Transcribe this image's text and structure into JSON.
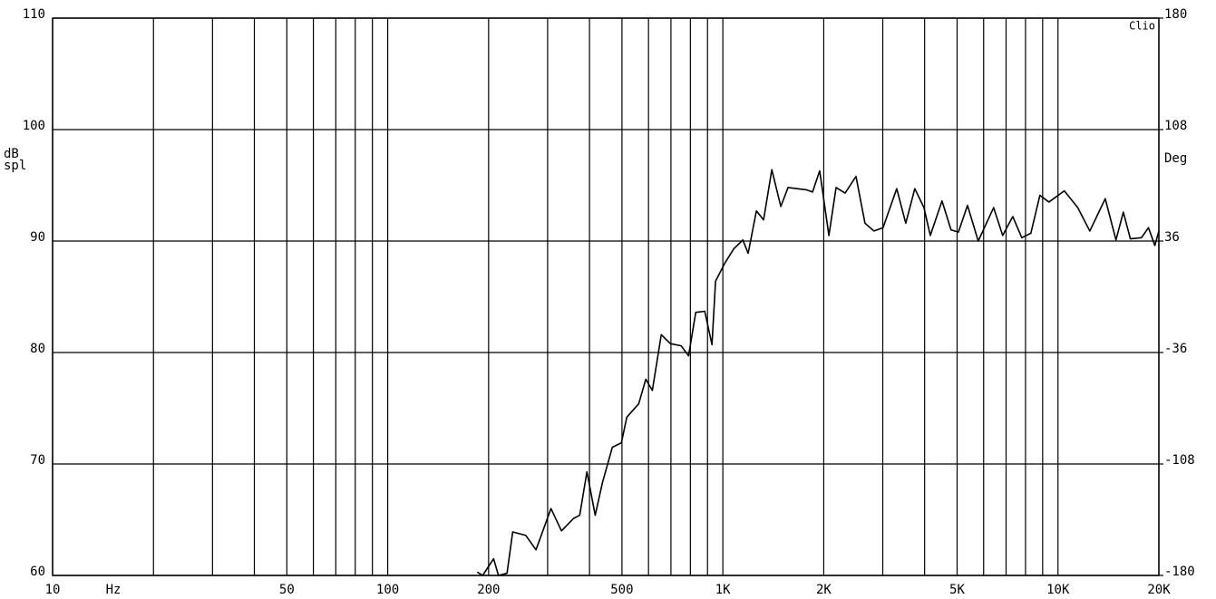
{
  "chart_data": {
    "type": "line",
    "xscale": "log",
    "xlabel": "Hz",
    "ylabel": [
      "dB",
      "spl"
    ],
    "y2label": "Deg",
    "annotation": "Clio",
    "color": "#000000",
    "xlim": [
      10,
      20000
    ],
    "ylim": [
      60,
      110
    ],
    "y2lim": [
      -180,
      180
    ],
    "xticks": [
      10,
      50,
      100,
      200,
      500,
      {
        "value": 1000,
        "label": "1K"
      },
      {
        "value": 2000,
        "label": "2K"
      },
      {
        "value": 5000,
        "label": "5K"
      },
      {
        "value": 10000,
        "label": "10K"
      },
      {
        "value": 20000,
        "label": "20K"
      }
    ],
    "x_minor_ticks": [
      20,
      30,
      40,
      60,
      70,
      80,
      90,
      300,
      400,
      600,
      700,
      800,
      900,
      3000,
      4000,
      6000,
      7000,
      8000,
      9000
    ],
    "yticks": [
      60,
      70,
      80,
      90,
      100,
      110
    ],
    "y2ticks": [
      -180,
      -108,
      -36,
      36,
      108,
      180
    ],
    "grid": true,
    "x": [
      185,
      192,
      207,
      214,
      227,
      236,
      258,
      277,
      307,
      330,
      358,
      374,
      393,
      416,
      437,
      468,
      498,
      517,
      561,
      589,
      616,
      655,
      697,
      751,
      790,
      830,
      883,
      928,
      951,
      1013,
      1078,
      1147,
      1190,
      1259,
      1323,
      1400,
      1489,
      1565,
      1773,
      1852,
      1945,
      2072,
      2177,
      2317,
      2496,
      2655,
      2825,
      3006,
      3302,
      3514,
      3739,
      3981,
      4159,
      4508,
      4797,
      5045,
      5370,
      5781,
      6427,
      6839,
      7328,
      7798,
      8299,
      8831,
      9397,
      10445,
      11455,
      12445,
      13836,
      14894,
      15667,
      16443,
      17742,
      18621,
      19454,
      20000
    ],
    "values": [
      60.3,
      60.0,
      61.5,
      60.0,
      60.2,
      63.9,
      63.6,
      62.3,
      66.0,
      64.0,
      65.1,
      65.4,
      69.3,
      65.4,
      68.3,
      71.5,
      71.9,
      74.2,
      75.4,
      77.6,
      76.6,
      81.6,
      80.8,
      80.6,
      79.7,
      83.6,
      83.7,
      80.7,
      86.4,
      88.0,
      89.3,
      90.1,
      88.9,
      92.7,
      91.9,
      96.4,
      93.1,
      94.8,
      94.6,
      94.4,
      96.3,
      90.5,
      94.8,
      94.3,
      95.8,
      91.6,
      90.9,
      91.2,
      94.7,
      91.6,
      94.7,
      93.0,
      90.5,
      93.6,
      91.0,
      90.8,
      93.2,
      90.0,
      93.0,
      90.5,
      92.2,
      90.3,
      90.7,
      94.1,
      93.5,
      94.5,
      93.0,
      90.9,
      93.8,
      90.1,
      92.6,
      90.2,
      90.3,
      91.2,
      89.6,
      90.9
    ]
  }
}
